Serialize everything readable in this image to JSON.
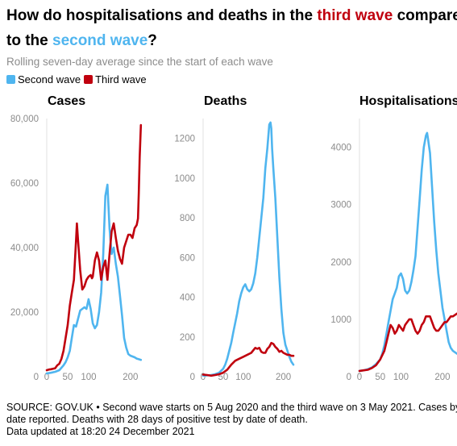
{
  "title": {
    "part1": "How do hospitalisations and deaths in the ",
    "third": "third wave",
    "part2": " compared",
    "part3": "to the ",
    "second": "second wave",
    "part4": "?"
  },
  "subtitle": "Rolling seven-day average since the start of each wave",
  "legend": [
    {
      "label": "Second wave",
      "color": "#4fb5ef"
    },
    {
      "label": "Third wave",
      "color": "#c0000e"
    }
  ],
  "footer": {
    "line1": "SOURCE: GOV.UK • Second wave starts on 5 Aug 2020 and the third wave on 3 May 2021. Cases by",
    "line2": "date reported. Deaths with 28 days of positive test by date of death.",
    "line3": "Data updated at 18:20 24 December 2021"
  },
  "chart_data": [
    {
      "type": "line",
      "title": "Cases",
      "xlim": [
        0,
        235
      ],
      "ylim": [
        0,
        80000
      ],
      "xticks": [
        {
          "v": 0,
          "label": "0"
        },
        {
          "v": 50,
          "label": "50"
        },
        {
          "v": 100,
          "label": "100"
        },
        {
          "v": 200,
          "label": "200"
        }
      ],
      "yticks": [
        {
          "v": 0,
          "label": "0"
        },
        {
          "v": 20000,
          "label": "20,000"
        },
        {
          "v": 40000,
          "label": "40,000"
        },
        {
          "v": 60000,
          "label": "60,000"
        },
        {
          "v": 80000,
          "label": "80,000"
        }
      ],
      "series": [
        {
          "name": "Second wave",
          "color": "#4fb5ef",
          "x": [
            0,
            10,
            20,
            30,
            40,
            45,
            50,
            55,
            60,
            65,
            70,
            75,
            80,
            85,
            90,
            95,
            100,
            105,
            110,
            115,
            120,
            125,
            130,
            135,
            140,
            145,
            150,
            155,
            160,
            165,
            170,
            175,
            180,
            185,
            190,
            195,
            200,
            210,
            215,
            220,
            225
          ],
          "y": [
            1000,
            1200,
            1500,
            2000,
            3500,
            4500,
            6000,
            8000,
            12000,
            16000,
            15500,
            18000,
            20500,
            21000,
            21500,
            21000,
            24000,
            21000,
            16500,
            15000,
            16000,
            20000,
            26000,
            38000,
            56000,
            59500,
            46000,
            38000,
            40000,
            35000,
            31000,
            25000,
            19000,
            12000,
            9000,
            7000,
            6500,
            6000,
            5600,
            5400,
            5200
          ]
        },
        {
          "name": "Third wave",
          "color": "#c0000e",
          "x": [
            0,
            5,
            10,
            20,
            25,
            30,
            35,
            40,
            45,
            50,
            55,
            60,
            65,
            70,
            72,
            75,
            80,
            85,
            90,
            95,
            100,
            105,
            108,
            110,
            115,
            120,
            125,
            130,
            135,
            140,
            145,
            150,
            155,
            160,
            165,
            170,
            175,
            180,
            185,
            190,
            195,
            200,
            205,
            210,
            215,
            218,
            220,
            222,
            225
          ],
          "y": [
            2000,
            2200,
            2300,
            2600,
            3500,
            4000,
            5500,
            8000,
            12000,
            16000,
            22000,
            26000,
            30000,
            42000,
            47500,
            42000,
            33000,
            27000,
            28000,
            30000,
            31000,
            31500,
            30500,
            31000,
            36000,
            38500,
            36000,
            30000,
            34000,
            36000,
            30000,
            38000,
            45000,
            47500,
            43000,
            39000,
            36500,
            35000,
            40000,
            42000,
            44000,
            44000,
            43000,
            46000,
            47000,
            49000,
            57000,
            68000,
            78000
          ]
        }
      ]
    },
    {
      "type": "line",
      "title": "Deaths",
      "xlim": [
        0,
        235
      ],
      "ylim": [
        0,
        1300
      ],
      "xticks": [
        {
          "v": 0,
          "label": "0"
        },
        {
          "v": 50,
          "label": "50"
        },
        {
          "v": 100,
          "label": "100"
        },
        {
          "v": 200,
          "label": "200"
        }
      ],
      "yticks": [
        {
          "v": 0,
          "label": "0"
        },
        {
          "v": 200,
          "label": "200"
        },
        {
          "v": 400,
          "label": "400"
        },
        {
          "v": 600,
          "label": "600"
        },
        {
          "v": 800,
          "label": "800"
        },
        {
          "v": 1000,
          "label": "1000"
        },
        {
          "v": 1200,
          "label": "1200"
        }
      ],
      "series": [
        {
          "name": "Second wave",
          "color": "#4fb5ef",
          "x": [
            0,
            10,
            20,
            30,
            40,
            50,
            55,
            60,
            65,
            70,
            75,
            80,
            85,
            90,
            95,
            100,
            105,
            110,
            115,
            120,
            125,
            130,
            135,
            140,
            145,
            150,
            155,
            160,
            165,
            168,
            170,
            172,
            175,
            180,
            185,
            190,
            195,
            200,
            205,
            210,
            215,
            220,
            225
          ],
          "y": [
            5,
            6,
            8,
            12,
            20,
            40,
            60,
            90,
            130,
            170,
            220,
            270,
            320,
            380,
            420,
            450,
            465,
            440,
            430,
            440,
            470,
            520,
            600,
            700,
            800,
            900,
            1050,
            1150,
            1270,
            1280,
            1250,
            1150,
            1050,
            900,
            700,
            500,
            340,
            220,
            160,
            130,
            100,
            75,
            60
          ]
        },
        {
          "name": "Third wave",
          "color": "#c0000e",
          "x": [
            0,
            10,
            20,
            30,
            40,
            50,
            60,
            70,
            80,
            90,
            100,
            110,
            120,
            130,
            135,
            140,
            145,
            150,
            155,
            160,
            165,
            170,
            175,
            180,
            185,
            190,
            195,
            200,
            205,
            210,
            215,
            220,
            225
          ],
          "y": [
            10,
            8,
            5,
            8,
            12,
            20,
            35,
            60,
            80,
            90,
            100,
            110,
            120,
            145,
            140,
            145,
            125,
            120,
            120,
            140,
            150,
            170,
            165,
            150,
            140,
            125,
            130,
            120,
            115,
            110,
            110,
            105,
            105
          ]
        }
      ]
    },
    {
      "type": "line",
      "title": "Hospitalisations",
      "xlim": [
        0,
        235
      ],
      "ylim": [
        0,
        4500
      ],
      "xticks": [
        {
          "v": 0,
          "label": "0"
        },
        {
          "v": 50,
          "label": "50"
        },
        {
          "v": 100,
          "label": "100"
        },
        {
          "v": 200,
          "label": "200"
        }
      ],
      "yticks": [
        {
          "v": 0,
          "label": "0"
        },
        {
          "v": 1000,
          "label": "1000"
        },
        {
          "v": 2000,
          "label": "2000"
        },
        {
          "v": 3000,
          "label": "3000"
        },
        {
          "v": 4000,
          "label": "4000"
        }
      ],
      "series": [
        {
          "name": "Second wave",
          "color": "#4fb5ef",
          "x": [
            0,
            10,
            20,
            30,
            40,
            50,
            55,
            60,
            65,
            70,
            75,
            80,
            85,
            90,
            95,
            100,
            105,
            110,
            115,
            120,
            125,
            130,
            135,
            140,
            145,
            150,
            155,
            160,
            163,
            165,
            170,
            175,
            180,
            185,
            190,
            195,
            200,
            205,
            210,
            215,
            220,
            225,
            235
          ],
          "y": [
            100,
            110,
            130,
            160,
            220,
            300,
            400,
            550,
            750,
            950,
            1150,
            1350,
            1450,
            1550,
            1750,
            1800,
            1700,
            1500,
            1450,
            1500,
            1650,
            1850,
            2100,
            2600,
            3100,
            3600,
            4000,
            4200,
            4250,
            4150,
            3900,
            3300,
            2700,
            2200,
            1800,
            1500,
            1200,
            1000,
            800,
            600,
            500,
            450,
            400
          ]
        },
        {
          "name": "Third wave",
          "color": "#c0000e",
          "x": [
            0,
            10,
            20,
            30,
            40,
            50,
            60,
            65,
            70,
            75,
            80,
            85,
            90,
            95,
            100,
            105,
            110,
            115,
            120,
            125,
            130,
            135,
            140,
            145,
            150,
            155,
            160,
            165,
            170,
            175,
            180,
            185,
            190,
            195,
            200,
            205,
            210,
            215,
            220,
            225,
            235
          ],
          "y": [
            100,
            110,
            120,
            150,
            200,
            300,
            450,
            600,
            750,
            900,
            850,
            750,
            800,
            900,
            850,
            800,
            900,
            950,
            1000,
            1000,
            900,
            800,
            750,
            800,
            900,
            950,
            1050,
            1050,
            1050,
            950,
            850,
            800,
            800,
            850,
            900,
            950,
            950,
            1000,
            1050,
            1050,
            1100
          ]
        }
      ]
    }
  ]
}
